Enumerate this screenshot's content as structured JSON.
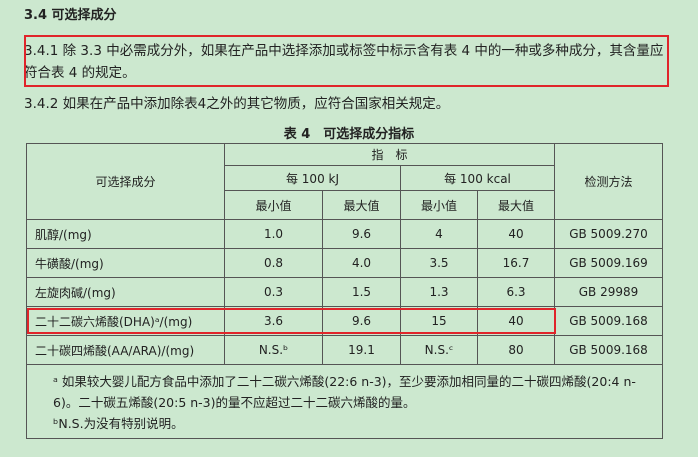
{
  "heading": "3.4 可选择成分",
  "paragraphs": [
    "3.4.1 除 3.3 中必需成分外，如果在产品中选择添加或标签中标示含有表 4 中的一种或多种成分，其含量应符合表 4 的规定。",
    "3.4.2 如果在产品中添加除表4之外的其它物质，应符合国家相关规定。"
  ],
  "table": {
    "title": "表 4　可选择成分指标",
    "header": {
      "component": "可选择成分",
      "indicator": "指　标",
      "per_kj": "每 100 kJ",
      "per_kcal": "每 100 kcal",
      "method": "检测方法",
      "subheaders": [
        "最小值",
        "最大值",
        "最小值",
        "最大值"
      ]
    },
    "rows": [
      [
        "肌醇/(mg)",
        "1.0",
        "9.6",
        "4",
        "40",
        "GB 5009.270"
      ],
      [
        "牛磺酸/(mg)",
        "0.8",
        "4.0",
        "3.5",
        "16.7",
        "GB 5009.169"
      ],
      [
        "左旋肉碱/(mg)",
        "0.3",
        "1.5",
        "1.3",
        "6.3",
        "GB 29989"
      ],
      [
        "二十二碳六烯酸(DHA)ᵃ/(mg)",
        "3.6",
        "9.6",
        "15",
        "40",
        "GB 5009.168"
      ],
      [
        "二十碳四烯酸(AA/ARA)/(mg)",
        "N.S.ᵇ",
        "19.1",
        "N.S.ᶜ",
        "80",
        "GB 5009.168"
      ]
    ],
    "footnotes": [
      "ᵃ 如果较大婴儿配方食品中添加了二十二碳六烯酸(22:6 n-3)，至少要添加相同量的二十碳四烯酸(20:4 n-6)。二十碳五烯酸(20:5 n-3)的量不应超过二十二碳六烯酸的量。",
      "ᵇN.S.为没有特别说明。"
    ]
  }
}
